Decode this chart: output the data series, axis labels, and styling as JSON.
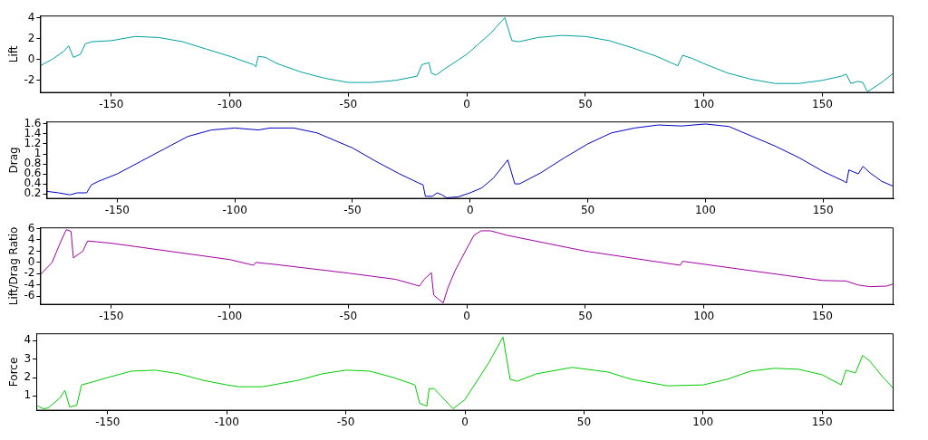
{
  "chart_data": [
    {
      "type": "line",
      "ylabel": "Lift",
      "marker": "none",
      "xlim": [
        -180,
        180
      ],
      "xticks": [
        -150,
        -100,
        -50,
        0,
        50,
        100,
        150
      ],
      "ylim": [
        -3.2,
        4.2
      ],
      "yticks": [
        -2,
        0,
        2,
        4
      ],
      "x": [
        -180,
        -175,
        -170,
        -168,
        -166,
        -163,
        -161,
        -158,
        -150,
        -140,
        -130,
        -120,
        -110,
        -100,
        -90,
        -89,
        -88,
        -85,
        -80,
        -70,
        -60,
        -50,
        -40,
        -30,
        -21,
        -19,
        -16,
        -15,
        -13,
        -10,
        0,
        10,
        16,
        19,
        22,
        30,
        40,
        50,
        60,
        70,
        80,
        89,
        91,
        95,
        100,
        110,
        120,
        130,
        140,
        150,
        158,
        160,
        162,
        165,
        167,
        169,
        175,
        180
      ],
      "values": [
        -0.6,
        0,
        0.8,
        1.3,
        0.2,
        0.5,
        1.5,
        1.7,
        1.8,
        2.2,
        2.1,
        1.7,
        1.0,
        0.3,
        -0.5,
        -0.7,
        0.3,
        0.2,
        -0.4,
        -1.2,
        -1.8,
        -2.2,
        -2.2,
        -2.0,
        -1.6,
        -0.5,
        -0.3,
        -1.3,
        -1.5,
        -1.0,
        0.5,
        2.5,
        4.0,
        1.8,
        1.7,
        2.1,
        2.3,
        2.2,
        1.8,
        1.1,
        0.3,
        -0.6,
        0.4,
        0.1,
        -0.4,
        -1.3,
        -1.9,
        -2.3,
        -2.3,
        -2.0,
        -1.6,
        -1.4,
        -2.3,
        -2.1,
        -2.2,
        -3.1,
        -2.2,
        -1.3
      ],
      "color": "#00a0a0"
    },
    {
      "type": "line",
      "ylabel": "Drag",
      "marker": "none",
      "xlim": [
        -180,
        180
      ],
      "xticks": [
        -150,
        -100,
        -50,
        0,
        50,
        100,
        150
      ],
      "ylim": [
        0.1,
        1.65
      ],
      "yticks": [
        0.2,
        0.4,
        0.6,
        0.8,
        1,
        1.2,
        1.4,
        1.6
      ],
      "x": [
        -180,
        -175,
        -170,
        -167,
        -163,
        -161,
        -158,
        -150,
        -140,
        -130,
        -120,
        -110,
        -100,
        -90,
        -85,
        -75,
        -65,
        -50,
        -40,
        -30,
        -22,
        -20,
        -19,
        -16,
        -14,
        -12,
        -10,
        -5,
        0,
        5,
        10,
        16,
        19,
        21,
        30,
        40,
        50,
        60,
        70,
        80,
        90,
        100,
        110,
        120,
        130,
        140,
        150,
        159,
        160,
        161,
        165,
        167,
        170,
        175,
        180
      ],
      "values": [
        0.25,
        0.22,
        0.18,
        0.22,
        0.22,
        0.38,
        0.45,
        0.6,
        0.85,
        1.1,
        1.35,
        1.48,
        1.52,
        1.48,
        1.52,
        1.52,
        1.42,
        1.12,
        0.85,
        0.6,
        0.42,
        0.38,
        0.15,
        0.15,
        0.22,
        0.18,
        0.12,
        0.14,
        0.22,
        0.32,
        0.52,
        0.88,
        0.4,
        0.4,
        0.62,
        0.92,
        1.2,
        1.42,
        1.52,
        1.58,
        1.56,
        1.6,
        1.55,
        1.35,
        1.15,
        0.92,
        0.65,
        0.45,
        0.42,
        0.68,
        0.6,
        0.75,
        0.62,
        0.45,
        0.35
      ],
      "color": "#0000c0"
    },
    {
      "type": "line",
      "ylabel": "Lift/Drag Ratio",
      "marker": "none",
      "xlim": [
        -180,
        180
      ],
      "xticks": [
        -150,
        -100,
        -50,
        0,
        50,
        100,
        150
      ],
      "ylim": [
        -7.5,
        6.2
      ],
      "yticks": [
        -6,
        -4,
        -2,
        0,
        2,
        4,
        6
      ],
      "x": [
        -180,
        -175,
        -171,
        -169,
        -167,
        -166,
        -162,
        -160,
        -150,
        -100,
        -90,
        -89,
        -80,
        -50,
        -30,
        -20,
        -18,
        -15,
        -14,
        -12,
        -10,
        -8,
        -5,
        0,
        3,
        6,
        10,
        17,
        50,
        90,
        91,
        150,
        160,
        165,
        170,
        177,
        180
      ],
      "values": [
        -2.2,
        0,
        4,
        5.8,
        5.5,
        0.8,
        2,
        3.8,
        3.4,
        0.5,
        -0.5,
        0,
        -0.4,
        -1.9,
        -3,
        -4.2,
        -3,
        -1.8,
        -5.8,
        -6.5,
        -7.2,
        -4.5,
        -1.5,
        2.5,
        4.8,
        5.6,
        5.6,
        4.8,
        2,
        -0.5,
        0.2,
        -3.2,
        -3.3,
        -4,
        -4.3,
        -4.2,
        -3.8
      ],
      "color": "#a000a0"
    },
    {
      "type": "line",
      "ylabel": "Force",
      "marker": "none",
      "xlim": [
        -180,
        180
      ],
      "xticks": [
        -150,
        -100,
        -50,
        0,
        50,
        100,
        150
      ],
      "ylim": [
        0.2,
        4.4
      ],
      "yticks": [
        1,
        2,
        3,
        4
      ],
      "x": [
        -180,
        -177,
        -175,
        -170,
        -168,
        -166,
        -163,
        -161,
        -158,
        -150,
        -140,
        -130,
        -120,
        -110,
        -100,
        -95,
        -85,
        -70,
        -60,
        -50,
        -40,
        -30,
        -21,
        -19,
        -16,
        -15,
        -13,
        -10,
        -5,
        0,
        10,
        16,
        19,
        22,
        30,
        45,
        60,
        70,
        85,
        100,
        110,
        120,
        130,
        140,
        150,
        158,
        160,
        164,
        167,
        170,
        175,
        180
      ],
      "values": [
        0.5,
        0.3,
        0.35,
        0.9,
        1.3,
        0.4,
        0.5,
        1.6,
        1.7,
        2.0,
        2.35,
        2.4,
        2.2,
        1.85,
        1.6,
        1.5,
        1.5,
        1.85,
        2.2,
        2.4,
        2.35,
        2.0,
        1.6,
        0.6,
        0.45,
        1.4,
        1.4,
        1.0,
        0.3,
        0.8,
        2.8,
        4.2,
        1.9,
        1.8,
        2.2,
        2.55,
        2.3,
        1.9,
        1.55,
        1.6,
        1.9,
        2.35,
        2.5,
        2.45,
        2.15,
        1.6,
        2.4,
        2.25,
        3.2,
        2.9,
        2.1,
        1.4
      ],
      "color": "#00cc00"
    }
  ]
}
